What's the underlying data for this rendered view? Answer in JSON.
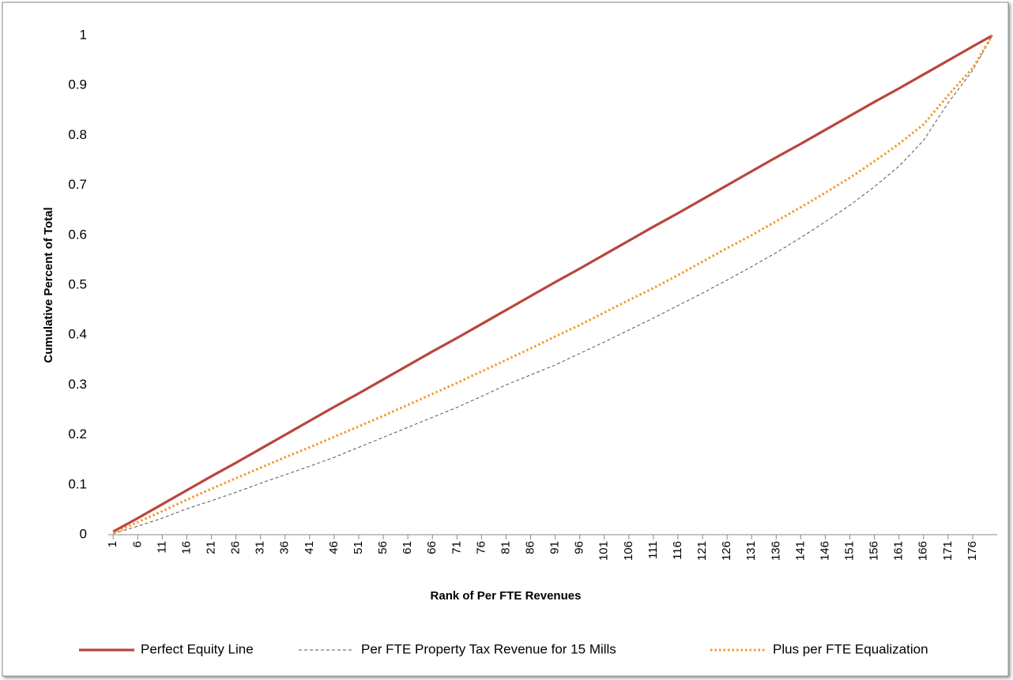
{
  "chart_data": {
    "type": "line",
    "x_title": "Rank of Per FTE Revenues",
    "y_title": "Cumulative Percent of Total",
    "x": [
      1,
      6,
      11,
      16,
      21,
      26,
      31,
      36,
      41,
      46,
      51,
      56,
      61,
      66,
      71,
      76,
      81,
      86,
      91,
      96,
      101,
      106,
      111,
      116,
      121,
      126,
      131,
      136,
      141,
      146,
      151,
      156,
      161,
      166,
      171,
      176,
      180
    ],
    "series": [
      {
        "name": "Perfect Equity Line",
        "color": "#b9463b",
        "style": "solid",
        "values": [
          0.006,
          0.033,
          0.061,
          0.089,
          0.117,
          0.144,
          0.172,
          0.2,
          0.228,
          0.256,
          0.283,
          0.311,
          0.339,
          0.367,
          0.394,
          0.422,
          0.45,
          0.478,
          0.506,
          0.533,
          0.561,
          0.589,
          0.617,
          0.644,
          0.672,
          0.7,
          0.728,
          0.756,
          0.783,
          0.811,
          0.839,
          0.867,
          0.894,
          0.922,
          0.95,
          0.978,
          1
        ]
      },
      {
        "name": "Per FTE Property Tax Revenue for 15 Mills",
        "color": "#555555",
        "style": "dashed",
        "values": [
          0.002,
          0.017,
          0.033,
          0.052,
          0.068,
          0.085,
          0.103,
          0.12,
          0.137,
          0.155,
          0.175,
          0.195,
          0.215,
          0.235,
          0.255,
          0.277,
          0.3,
          0.32,
          0.34,
          0.363,
          0.386,
          0.41,
          0.434,
          0.459,
          0.484,
          0.51,
          0.537,
          0.565,
          0.595,
          0.627,
          0.66,
          0.697,
          0.738,
          0.79,
          0.865,
          0.93,
          1
        ]
      },
      {
        "name": "Plus per FTE Equalization",
        "color": "#f39a2f",
        "style": "dotted",
        "values": [
          0.003,
          0.025,
          0.047,
          0.07,
          0.092,
          0.113,
          0.134,
          0.155,
          0.175,
          0.196,
          0.217,
          0.238,
          0.26,
          0.282,
          0.304,
          0.327,
          0.35,
          0.373,
          0.397,
          0.42,
          0.445,
          0.47,
          0.494,
          0.52,
          0.547,
          0.574,
          0.6,
          0.628,
          0.656,
          0.685,
          0.715,
          0.748,
          0.783,
          0.822,
          0.88,
          0.935,
          1
        ]
      }
    ],
    "xlim": [
      0,
      181
    ],
    "xticks": [
      1,
      6,
      11,
      16,
      21,
      26,
      31,
      36,
      41,
      46,
      51,
      56,
      61,
      66,
      71,
      76,
      81,
      86,
      91,
      96,
      101,
      106,
      111,
      116,
      121,
      126,
      131,
      136,
      141,
      146,
      151,
      156,
      161,
      166,
      171,
      176
    ],
    "ylim": [
      0,
      1
    ],
    "yticks": [
      0,
      0.1,
      0.2,
      0.3,
      0.4,
      0.5,
      0.6,
      0.7,
      0.8,
      0.9,
      1
    ],
    "grid": false,
    "legend": "bottom"
  }
}
